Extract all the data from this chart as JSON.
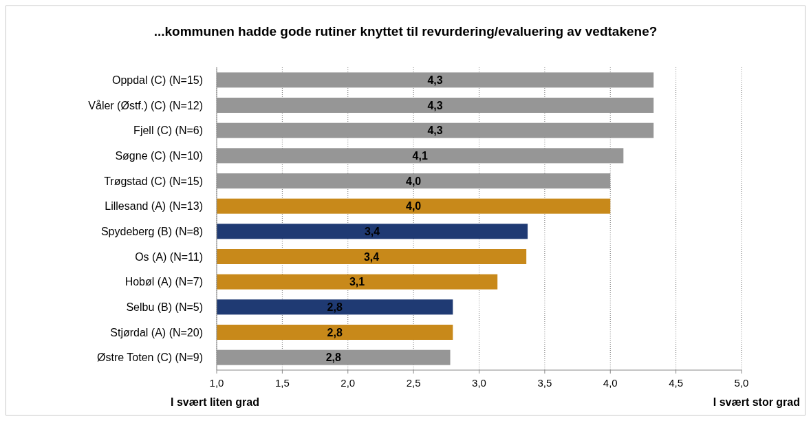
{
  "chart_data": {
    "type": "bar",
    "orientation": "horizontal",
    "title": "...kommunen hadde gode rutiner knyttet til revurdering/evaluering av vedtakene?",
    "categories": [
      "Oppdal (C) (N=15)",
      "Våler (Østf.) (C) (N=12)",
      "Fjell (C) (N=6)",
      "Søgne (C) (N=10)",
      "Trøgstad (C) (N=15)",
      "Lillesand (A) (N=13)",
      "Spydeberg (B) (N=8)",
      "Os (A) (N=11)",
      "Hobøl (A) (N=7)",
      "Selbu (B) (N=5)",
      "Stjørdal (A) (N=20)",
      "Østre Toten (C) (N=9)"
    ],
    "values": [
      4.33,
      4.33,
      4.33,
      4.1,
      4.0,
      4.0,
      3.37,
      3.36,
      3.14,
      2.8,
      2.8,
      2.78
    ],
    "value_labels": [
      "4,3",
      "4,3",
      "4,3",
      "4,1",
      "4,0",
      "4,0",
      "3,4",
      "3,4",
      "3,1",
      "2,8",
      "2,8",
      "2,8"
    ],
    "colors": [
      "#969696",
      "#969696",
      "#969696",
      "#969696",
      "#969696",
      "#c8891a",
      "#1f3a73",
      "#c8891a",
      "#c8891a",
      "#1f3a73",
      "#c8891a",
      "#969696"
    ],
    "xlim": [
      1,
      5
    ],
    "xticks": [
      {
        "value": 1,
        "label": "1,0"
      },
      {
        "value": 1.5,
        "label": "1,5"
      },
      {
        "value": 2,
        "label": "2,0"
      },
      {
        "value": 2.5,
        "label": "2,5"
      },
      {
        "value": 3,
        "label": "3,0"
      },
      {
        "value": 3.5,
        "label": "3,5"
      },
      {
        "value": 4,
        "label": "4,0"
      },
      {
        "value": 4.5,
        "label": "4,5"
      },
      {
        "value": 5,
        "label": "5,0"
      }
    ],
    "grid": "x",
    "annotations": [
      "I svært liten grad",
      "I svært stor grad"
    ]
  }
}
